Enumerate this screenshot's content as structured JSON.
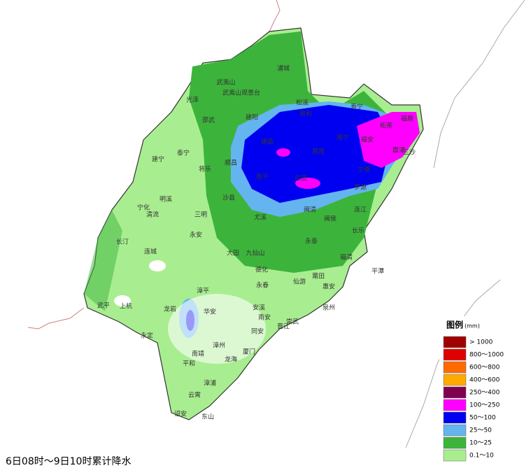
{
  "map": {
    "places": [
      "浦城",
      "武夷山",
      "武夷山观景台",
      "光泽",
      "邵武",
      "建阳",
      "松溪",
      "政和",
      "寿宁",
      "福鼎",
      "柘荣",
      "周宁",
      "福安",
      "霞浦",
      "三沙",
      "建瓯",
      "屏南",
      "顺昌",
      "泰宁",
      "建宁",
      "将乐",
      "南平",
      "古田",
      "宁德",
      "罗源",
      "明溪",
      "宁化",
      "清流",
      "沙县",
      "三明",
      "尤溪",
      "闽清",
      "闽侯",
      "连江",
      "长乐",
      "永安",
      "长汀",
      "连城",
      "永泰",
      "大田",
      "九仙山",
      "福清",
      "平潭",
      "德化",
      "莆田",
      "仙游",
      "永春",
      "漳平",
      "武平",
      "上杭",
      "龙岩",
      "华安",
      "安溪",
      "南安",
      "惠安",
      "泉州",
      "同安",
      "崇武",
      "晋江",
      "永定",
      "漳州",
      "南靖",
      "厦门",
      "龙海",
      "平和",
      "漳浦",
      "云霄",
      "诏安",
      "东山"
    ]
  },
  "legend": {
    "title": "图例",
    "unit": "(mm)",
    "items": [
      {
        "label": "> 1000",
        "color": "#a00000"
      },
      {
        "label": "800～1000",
        "color": "#e00000"
      },
      {
        "label": "600～800",
        "color": "#ff6a00"
      },
      {
        "label": "400～600",
        "color": "#ffaa00"
      },
      {
        "label": "250～400",
        "color": "#800050"
      },
      {
        "label": "100～250",
        "color": "#ff00ff"
      },
      {
        "label": "50～100",
        "color": "#0000f0"
      },
      {
        "label": "25～50",
        "color": "#64b4f0"
      },
      {
        "label": "10～25",
        "color": "#3cb43c"
      },
      {
        "label": "0.1～10",
        "color": "#a8ee90"
      }
    ]
  },
  "caption": "6日08时～9日10时累计降水"
}
